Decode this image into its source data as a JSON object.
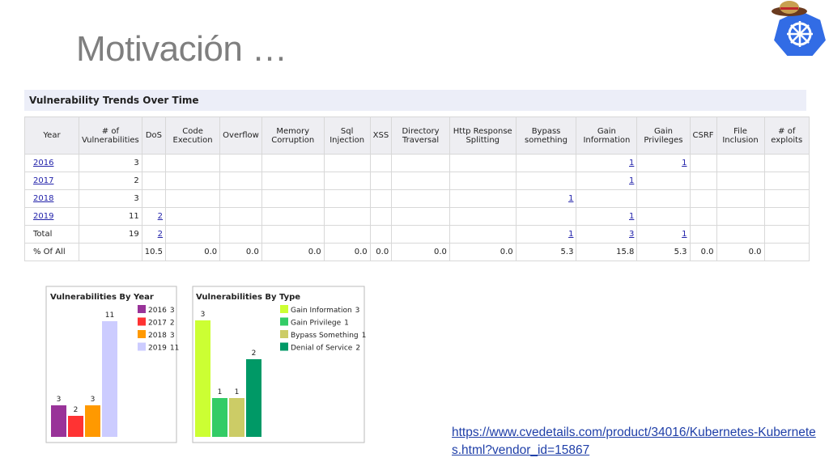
{
  "title": "Motivación …",
  "table": {
    "caption": "Vulnerability Trends Over Time",
    "headers": [
      "Year",
      "# of Vulnerabilities",
      "DoS",
      "Code Execution",
      "Overflow",
      "Memory Corruption",
      "Sql Injection",
      "XSS",
      "Directory Traversal",
      "Http Response Splitting",
      "Bypass something",
      "Gain Information",
      "Gain Privileges",
      "CSRF",
      "File Inclusion",
      "# of exploits"
    ],
    "rows": [
      [
        "2016",
        "3",
        null,
        null,
        null,
        null,
        null,
        null,
        null,
        null,
        null,
        "1",
        "1",
        null,
        null,
        null
      ],
      [
        "2017",
        "2",
        null,
        null,
        null,
        null,
        null,
        null,
        null,
        null,
        null,
        "1",
        null,
        null,
        null,
        null
      ],
      [
        "2018",
        "3",
        null,
        null,
        null,
        null,
        null,
        null,
        null,
        null,
        "1",
        null,
        null,
        null,
        null,
        null
      ],
      [
        "2019",
        "11",
        "2",
        null,
        null,
        null,
        null,
        null,
        null,
        null,
        null,
        "1",
        null,
        null,
        null,
        null
      ],
      [
        "Total",
        "19",
        "2",
        null,
        null,
        null,
        null,
        null,
        null,
        null,
        "1",
        "3",
        "1",
        null,
        null,
        null
      ],
      [
        "% Of All",
        null,
        "10.5",
        "0.0",
        "0.0",
        "0.0",
        "0.0",
        "0.0",
        "0.0",
        "0.0",
        "5.3",
        "15.8",
        "5.3",
        "0.0",
        "0.0",
        null
      ]
    ]
  },
  "chart_data": [
    {
      "type": "bar",
      "title": "Vulnerabilities By Year",
      "categories": [
        "2016",
        "2017",
        "2018",
        "2019"
      ],
      "values": [
        3,
        2,
        3,
        11
      ],
      "colors": [
        "#993399",
        "#ff3333",
        "#ff9900",
        "#ccccff"
      ],
      "ylim": [
        0,
        11
      ]
    },
    {
      "type": "bar",
      "title": "Vulnerabilities By Type",
      "categories": [
        "Gain Information",
        "Gain Privilege",
        "Bypass Something",
        "Denial of Service"
      ],
      "values": [
        3,
        1,
        1,
        2
      ],
      "colors": [
        "#ccff33",
        "#33cc66",
        "#cccc66",
        "#009966"
      ],
      "ylim": [
        0,
        3
      ]
    }
  ],
  "link": "https://www.cvedetails.com/product/34016/Kubernetes-Kubernetes.html?vendor_id=15867"
}
